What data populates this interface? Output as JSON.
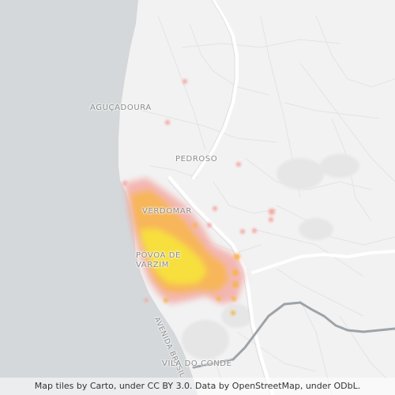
{
  "map": {
    "tile_style": "light-gray",
    "colors": {
      "water": "#d4d8db",
      "land": "#f2f2f2",
      "road_major": "#ffffff",
      "road_minor": "#e2e2e2",
      "river": "#9ea3a8",
      "heat_low": "#f4a7a2",
      "heat_mid": "#f7b64f",
      "heat_high": "#f7e33b"
    },
    "labels": {
      "acucadoura": "AGUÇADOURA",
      "pedroso": "PEDROSO",
      "verdomar": "VERDOMAR",
      "povoa": "PÓVOA DE VARZIM",
      "avenida": "AVENIDA BRASIL",
      "vila_do_conde": "VILA DO CONDE"
    }
  },
  "attribution": "Map tiles by Carto, under CC BY 3.0. Data by OpenStreetMap, under ODbL."
}
